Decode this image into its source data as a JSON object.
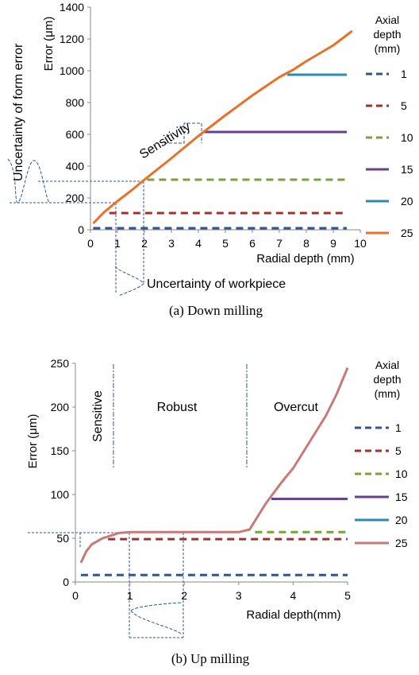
{
  "chart_data": [
    {
      "type": "line",
      "caption": "(a) Down milling",
      "ylabel": "Error (μm)",
      "xlabel": "Radial depth (mm)",
      "xlim": [
        0,
        10
      ],
      "ylim": [
        0,
        1400
      ],
      "x_ticks": [
        0,
        1,
        2,
        3,
        4,
        5,
        6,
        7,
        8,
        9,
        10
      ],
      "y_ticks": [
        0,
        200,
        400,
        600,
        800,
        1000,
        1200,
        1400
      ],
      "legend_title": "Axial depth (mm)",
      "legend_title_lines": [
        "Axial",
        "depth",
        "(mm)"
      ],
      "legend_position": "right",
      "grid": false,
      "series": [
        {
          "name": "1",
          "color": "#2f5597",
          "dash": true,
          "x": [
            0.1,
            9.5
          ],
          "y": [
            10,
            10
          ]
        },
        {
          "name": "5",
          "color": "#a0302c",
          "dash": true,
          "x": [
            0.7,
            9.5
          ],
          "y": [
            105,
            105
          ]
        },
        {
          "name": "10",
          "color": "#77a33a",
          "dash": true,
          "x": [
            2.1,
            9.5
          ],
          "y": [
            315,
            315
          ]
        },
        {
          "name": "15",
          "color": "#6a3f8e",
          "dash": false,
          "x": [
            4.2,
            9.5
          ],
          "y": [
            615,
            615
          ]
        },
        {
          "name": "20",
          "color": "#2b8bb0",
          "dash": false,
          "x": [
            7.3,
            9.5
          ],
          "y": [
            975,
            975
          ]
        },
        {
          "name": "25",
          "color": "#ea7128",
          "dash": false,
          "x": [
            0.1,
            0.5,
            1.0,
            1.5,
            2.0,
            3.0,
            4.0,
            5.0,
            6.0,
            7.0,
            7.5,
            8.0,
            9.0,
            9.7
          ],
          "y": [
            40,
            110,
            180,
            245,
            315,
            450,
            590,
            720,
            845,
            960,
            1005,
            1060,
            1160,
            1250
          ]
        }
      ],
      "annotations": {
        "sensitivity_label": "Sensitivity",
        "form_error_label": "Uncertainty of form error",
        "workpiece_label": "Uncertainty of workpiece"
      }
    },
    {
      "type": "line",
      "caption": "(b) Up milling",
      "ylabel": "Error (μm)",
      "xlabel": "Radial depth(mm)",
      "xlim": [
        0,
        5
      ],
      "ylim": [
        0,
        250
      ],
      "x_ticks": [
        0,
        1,
        2,
        3,
        4,
        5
      ],
      "y_ticks": [
        0,
        50,
        100,
        150,
        200,
        250
      ],
      "legend_title": "Axial depth (mm)",
      "legend_title_lines": [
        "Axial",
        "depth",
        "(mm)"
      ],
      "legend_position": "right",
      "grid": false,
      "series": [
        {
          "name": "1",
          "color": "#2f5597",
          "dash": true,
          "x": [
            0.1,
            5
          ],
          "y": [
            8,
            8
          ]
        },
        {
          "name": "5",
          "color": "#a0302c",
          "dash": true,
          "x": [
            0.6,
            5
          ],
          "y": [
            49,
            49
          ]
        },
        {
          "name": "10",
          "color": "#77a33a",
          "dash": true,
          "x": [
            3.3,
            5
          ],
          "y": [
            57,
            57
          ]
        },
        {
          "name": "15",
          "color": "#6a3f8e",
          "dash": false,
          "x": [
            3.6,
            5
          ],
          "y": [
            95,
            95
          ]
        },
        {
          "name": "20",
          "color": "#2b8bb0",
          "dash": false,
          "x": [],
          "y": []
        },
        {
          "name": "25",
          "color": "#c97a76",
          "dash": false,
          "x": [
            0.1,
            0.2,
            0.3,
            0.5,
            0.8,
            1.0,
            2.0,
            3.0,
            3.2,
            3.35,
            3.5,
            3.8,
            4.0,
            4.3,
            4.6,
            4.8,
            5.0
          ],
          "y": [
            22,
            35,
            43,
            50,
            56,
            57,
            57,
            57,
            60,
            75,
            90,
            115,
            130,
            160,
            190,
            215,
            245
          ]
        }
      ],
      "regions": [
        "Sensitive",
        "Robust",
        "Overcut"
      ]
    }
  ]
}
